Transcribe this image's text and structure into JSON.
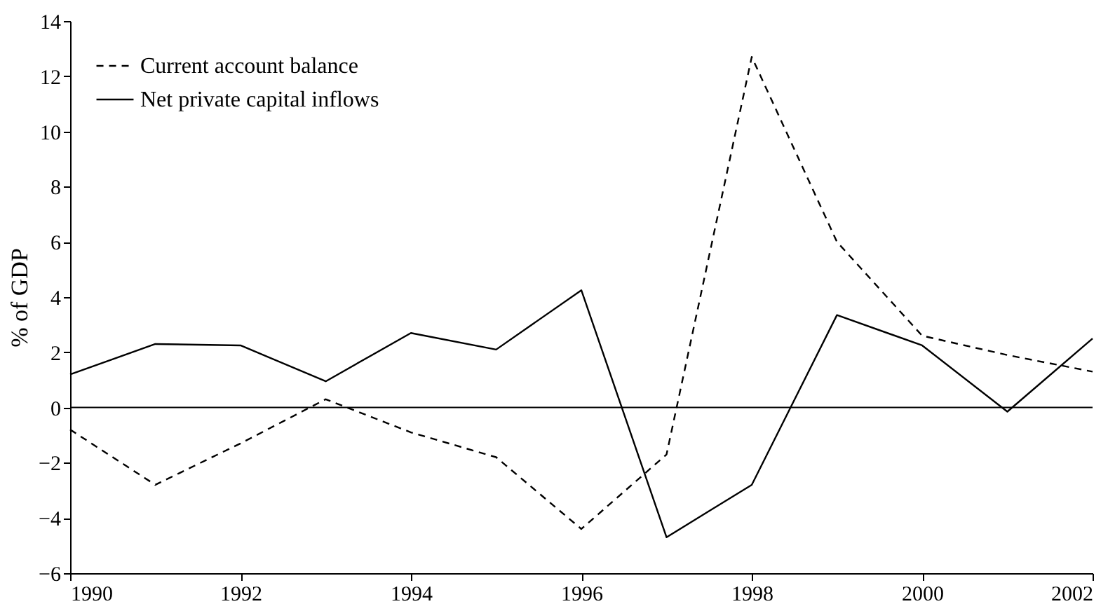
{
  "chart_data": {
    "type": "line",
    "ylabel": "% of GDP",
    "x": [
      1990,
      1991,
      1992,
      1993,
      1994,
      1995,
      1996,
      1997,
      1998,
      1999,
      2000,
      2001,
      2002
    ],
    "series": [
      {
        "name": "Current account balance",
        "color": "#000000",
        "line_style": "dashed",
        "values": [
          -0.8,
          -2.8,
          -1.3,
          0.3,
          -0.9,
          -1.8,
          -4.4,
          -1.7,
          12.7,
          6.0,
          2.6,
          1.9,
          1.3
        ]
      },
      {
        "name": "Net private capital inflows",
        "color": "#000000",
        "line_style": "solid",
        "values": [
          1.2,
          2.3,
          2.25,
          0.95,
          2.7,
          2.1,
          4.25,
          -4.7,
          -2.8,
          3.35,
          2.25,
          -0.15,
          2.5
        ]
      }
    ],
    "xlim": [
      1990,
      2002
    ],
    "xticks": [
      1990,
      1992,
      1994,
      1996,
      1998,
      2000,
      2002
    ],
    "ylim": [
      -6,
      14
    ],
    "yticks": [
      -6,
      -4,
      -2,
      0,
      2,
      4,
      6,
      8,
      10,
      12,
      14
    ],
    "ref_lines": [
      {
        "axis": "y",
        "value": 0,
        "color": "#000000"
      }
    ],
    "grid": false,
    "legend": "top left",
    "marker": "none"
  }
}
